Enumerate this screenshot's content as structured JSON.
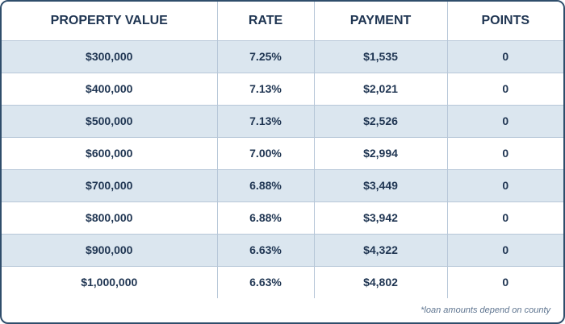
{
  "table": {
    "headers": [
      "PROPERTY VALUE",
      "RATE",
      "PAYMENT",
      "POINTS"
    ],
    "rows": [
      [
        "$300,000",
        "7.25%",
        "$1,535",
        "0"
      ],
      [
        "$400,000",
        "7.13%",
        "$2,021",
        "0"
      ],
      [
        "$500,000",
        "7.13%",
        "$2,526",
        "0"
      ],
      [
        "$600,000",
        "7.00%",
        "$2,994",
        "0"
      ],
      [
        "$700,000",
        "6.88%",
        "$3,449",
        "0"
      ],
      [
        "$800,000",
        "6.88%",
        "$3,942",
        "0"
      ],
      [
        "$900,000",
        "6.63%",
        "$4,322",
        "0"
      ],
      [
        "$1,000,000",
        "6.63%",
        "$4,802",
        "0"
      ]
    ]
  },
  "footnote": "*loan amounts depend on county",
  "colors": {
    "border": "#2f4d6b",
    "text": "#1f3552",
    "row_shade": "#dbe6ef",
    "divider": "#b7c7d8"
  }
}
